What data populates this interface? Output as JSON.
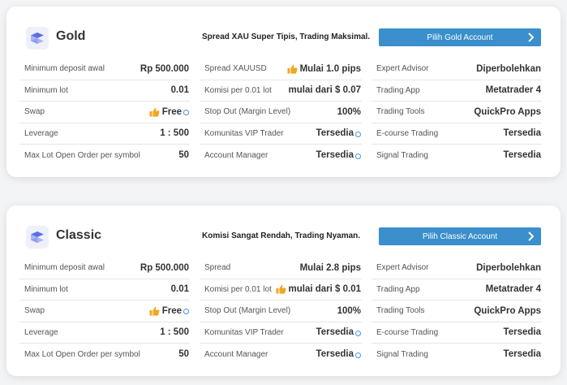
{
  "cards": [
    {
      "id": "gold",
      "name": "Gold",
      "tagline": "Spread XAU Super Tipis, Trading Maksimal.",
      "cta_label": "Pilih Gold Account",
      "col1": [
        {
          "label": "Minimum deposit awal",
          "value": "Rp 500.000"
        },
        {
          "label": "Minimum lot",
          "value": "0.01"
        },
        {
          "label": "Swap",
          "value": "Free"
        },
        {
          "label": "Leverage",
          "value": "1 : 500"
        },
        {
          "label": "Max Lot Open Order per symbol",
          "value": "50"
        }
      ],
      "col2": [
        {
          "label": "Spread XAUUSD",
          "value": "Mulai 1.0 pips"
        },
        {
          "label": "Komisi per 0.01 lot",
          "value": "mulai dari $ 0.07"
        },
        {
          "label": "Stop Out (Margin Level)",
          "value": "100%"
        },
        {
          "label": "Komunitas VIP Trader",
          "value": "Tersedia"
        },
        {
          "label": "Account Manager",
          "value": "Tersedia"
        }
      ],
      "col3": [
        {
          "label": "Expert Advisor",
          "value": "Diperbolehkan"
        },
        {
          "label": "Trading App",
          "value": "Metatrader 4"
        },
        {
          "label": "Trading Tools",
          "value": "QuickPro Apps"
        },
        {
          "label": "E-course Trading",
          "value": "Tersedia"
        },
        {
          "label": "Signal Trading",
          "value": "Tersedia"
        }
      ]
    },
    {
      "id": "classic",
      "name": "Classic",
      "tagline": "Komisi Sangat Rendah, Trading Nyaman.",
      "cta_label": "Pilih Classic Account",
      "col1": [
        {
          "label": "Minimum deposit awal",
          "value": "Rp 500.000"
        },
        {
          "label": "Minimum lot",
          "value": "0.01"
        },
        {
          "label": "Swap",
          "value": "Free"
        },
        {
          "label": "Leverage",
          "value": "1 : 500"
        },
        {
          "label": "Max Lot Open Order per symbol",
          "value": "50"
        }
      ],
      "col2": [
        {
          "label": "Spread",
          "value": "Mulai 2.8 pips"
        },
        {
          "label": "Komisi per 0.01 lot",
          "value": "mulai dari $ 0.01"
        },
        {
          "label": "Stop Out (Margin Level)",
          "value": "100%"
        },
        {
          "label": "Komunitas VIP Trader",
          "value": "Tersedia"
        },
        {
          "label": "Account Manager",
          "value": "Tersedia"
        }
      ],
      "col3": [
        {
          "label": "Expert Advisor",
          "value": "Diperbolehkan"
        },
        {
          "label": "Trading App",
          "value": "Metatrader 4"
        },
        {
          "label": "Trading Tools",
          "value": "QuickPro Apps"
        },
        {
          "label": "E-course Trading",
          "value": "Tersedia"
        },
        {
          "label": "Signal Trading",
          "value": "Tersedia"
        }
      ]
    }
  ],
  "icons": {
    "logo": "layers-icon",
    "highlight": "thumbs-up-icon",
    "info": "info-icon",
    "cta": "chevron-right-icon"
  },
  "colors": {
    "cta_bg": "#3a8fcc",
    "thumb": "#f2a623",
    "info": "#4a90d9",
    "logo_bg": "#eef0fa",
    "logo_fg": "#5b6ee6"
  }
}
